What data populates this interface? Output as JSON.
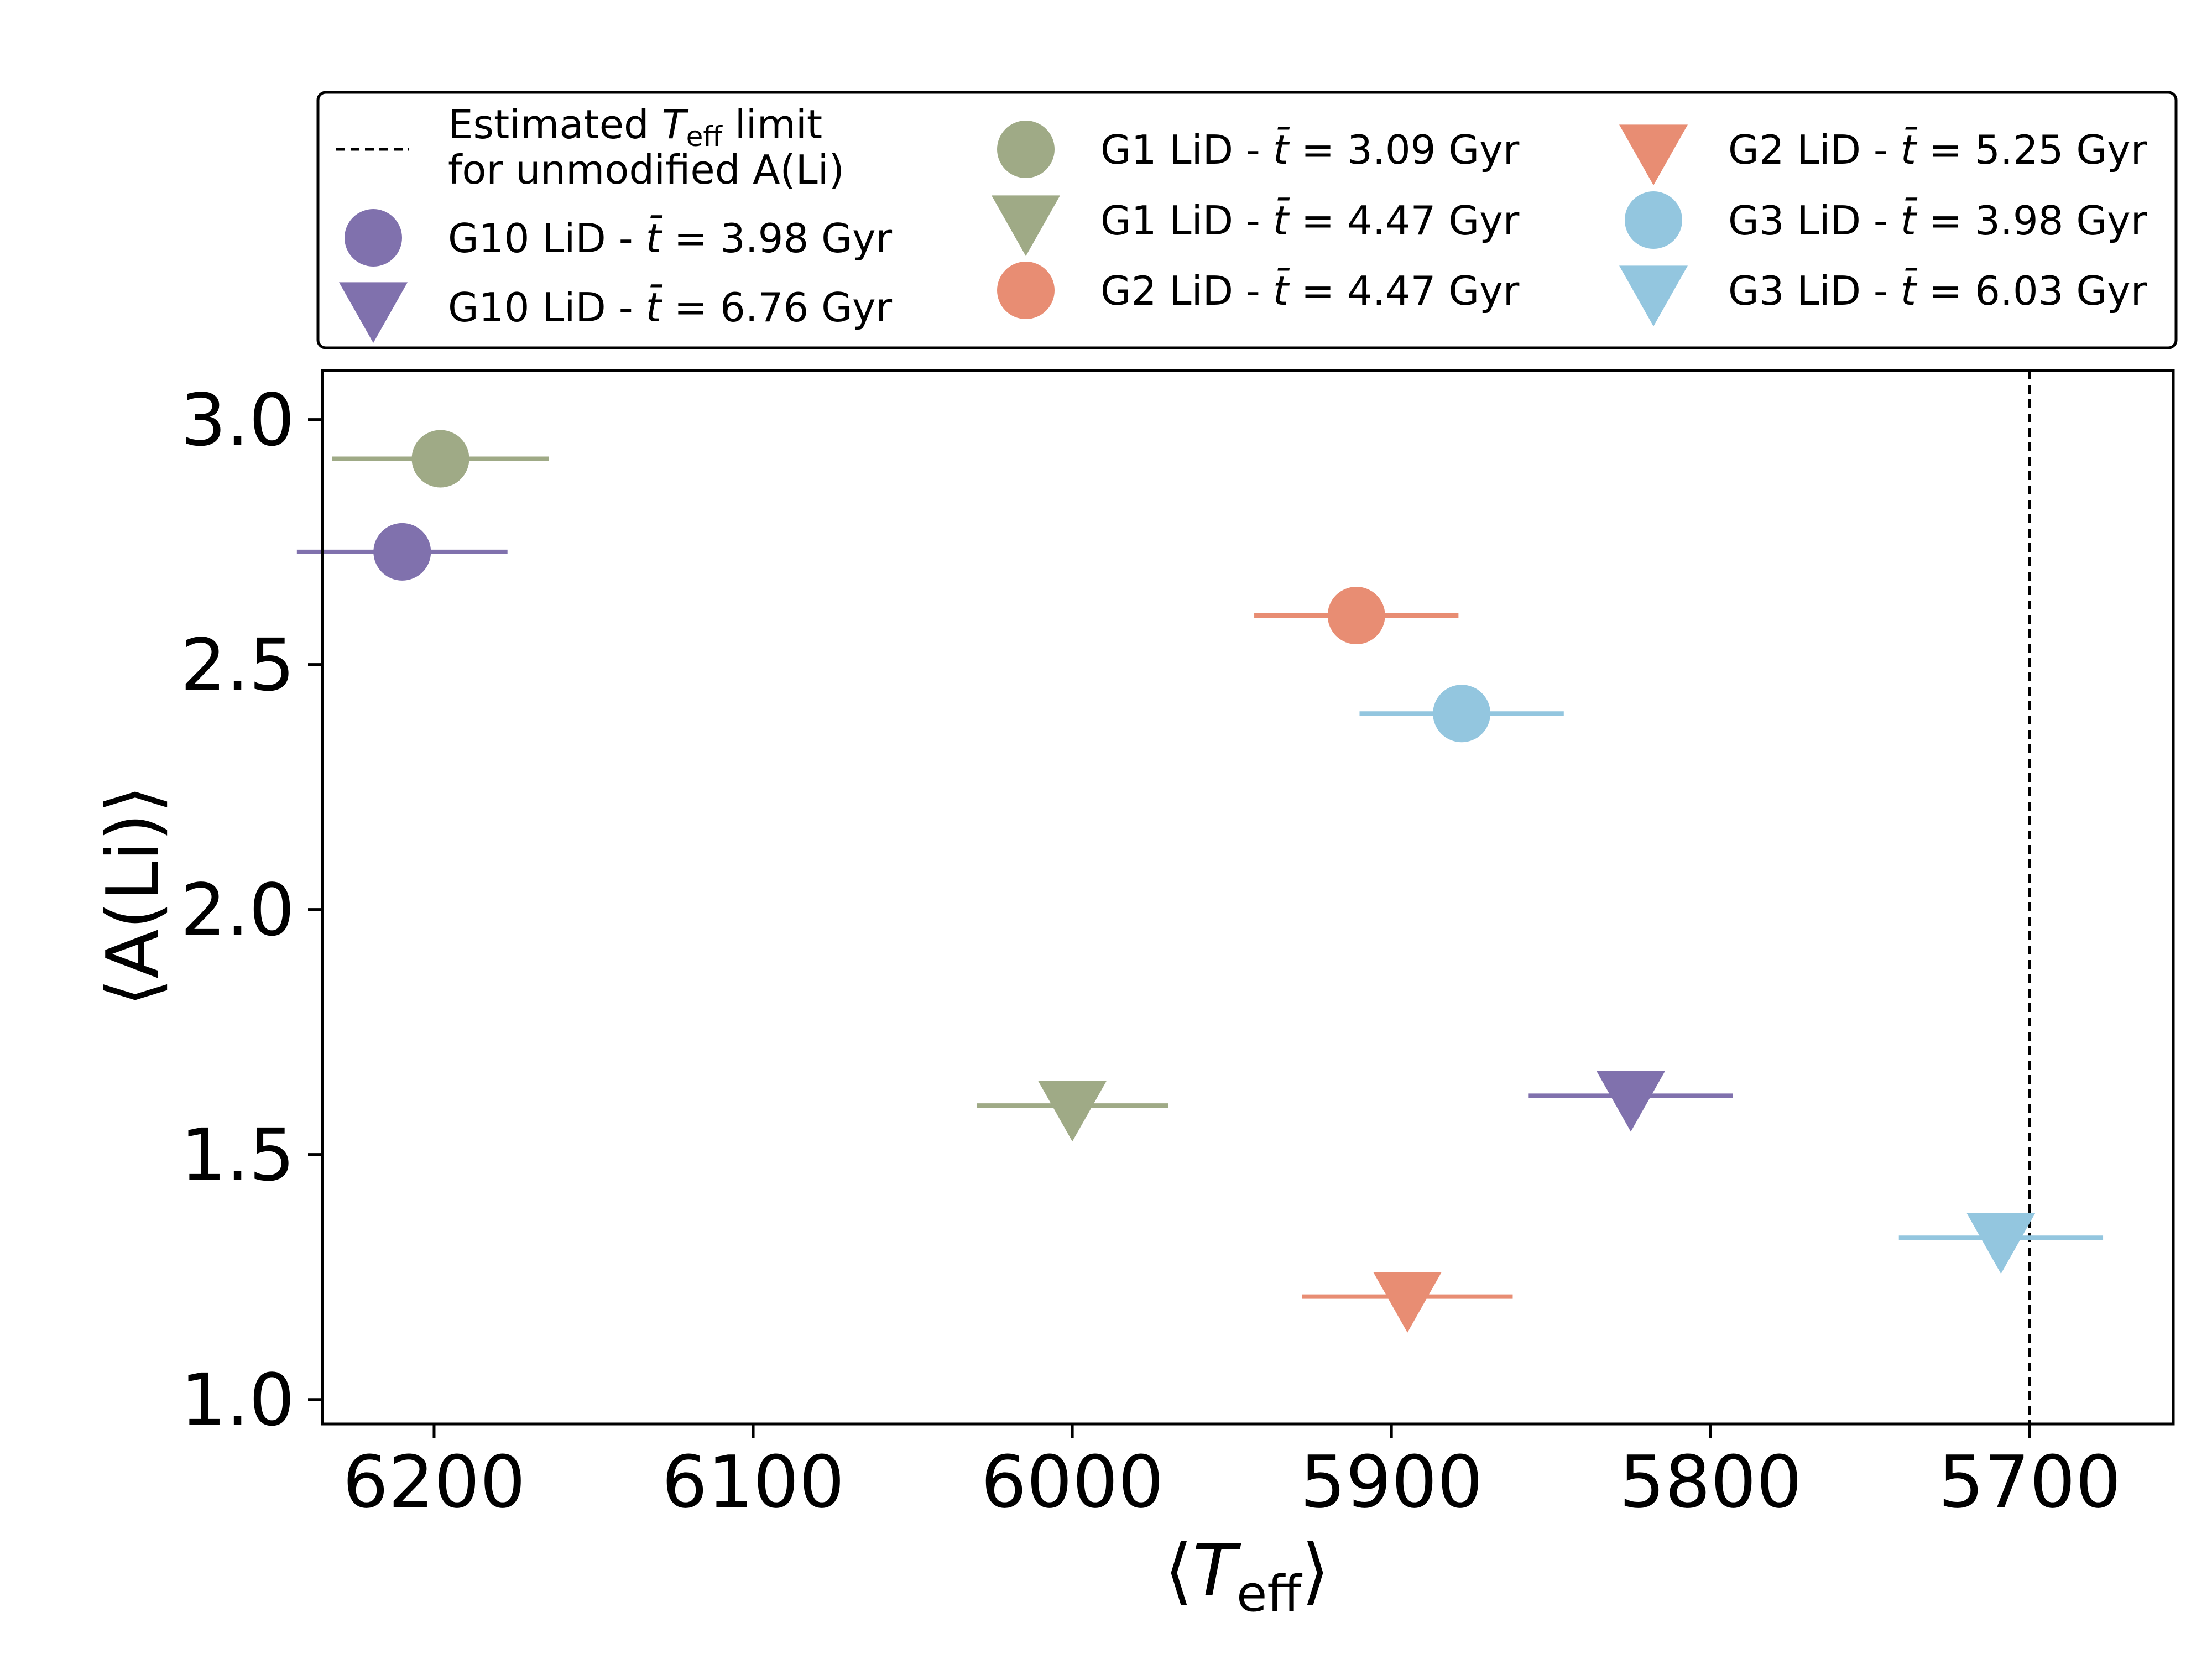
{
  "chart_data": {
    "type": "scatter",
    "title": "",
    "xlabel": {
      "open": "⟨",
      "main": "T",
      "sub": "eff",
      "close": "⟩"
    },
    "ylabel": "⟨A(Li)⟩",
    "xlim": [
      6235,
      5655
    ],
    "ylim": [
      0.95,
      3.1
    ],
    "x_inverted": true,
    "xticks": [
      6200,
      6100,
      6000,
      5900,
      5800,
      5700
    ],
    "xtick_labels": [
      "6200",
      "6100",
      "6000",
      "5900",
      "5800",
      "5700"
    ],
    "yticks": [
      1.0,
      1.5,
      2.0,
      2.5,
      3.0
    ],
    "ytick_labels": [
      "1.0",
      "1.5",
      "2.0",
      "2.5",
      "3.0"
    ],
    "grid": false,
    "legend_position": "above plot",
    "reference_line": {
      "orientation": "vertical",
      "x": 5700,
      "style": "dashed",
      "label_line1": {
        "pre": "Estimated ",
        "main": "T",
        "sub": "eff",
        "post": " limit"
      },
      "label_line2": "for unmodified A(Li)"
    },
    "series": [
      {
        "name": "G10 LiD - t̄ =  3.98 Gyr",
        "group": "G10",
        "age": "3.98",
        "marker": "circle",
        "color": "#8071ad",
        "x": 6210,
        "xerr": 33,
        "y": 2.73
      },
      {
        "name": "G10 LiD - t̄ =  6.76 Gyr",
        "group": "G10",
        "age": "6.76",
        "marker": "triangle",
        "color": "#8071ad",
        "x": 5825,
        "xerr": 32,
        "y": 1.62
      },
      {
        "name": "G1 LiD - t̄ =  3.09 Gyr",
        "group": "G1",
        "age": "3.09",
        "marker": "circle",
        "color": "#9faa86",
        "x": 6198,
        "xerr": 34,
        "y": 2.92
      },
      {
        "name": "G1 LiD - t̄ =  4.47 Gyr",
        "group": "G1",
        "age": "4.47",
        "marker": "triangle",
        "color": "#9faa86",
        "x": 6000,
        "xerr": 30,
        "y": 1.6
      },
      {
        "name": "G2 LiD - t̄ =  4.47 Gyr",
        "group": "G2",
        "age": "4.47",
        "marker": "circle",
        "color": "#e88d73",
        "x": 5911,
        "xerr": 32,
        "y": 2.6
      },
      {
        "name": "G2 LiD - t̄ =  5.25 Gyr",
        "group": "G2",
        "age": "5.25",
        "marker": "triangle",
        "color": "#e88d73",
        "x": 5895,
        "xerr": 33,
        "y": 1.21
      },
      {
        "name": "G3 LiD - t̄ =  3.98 Gyr",
        "group": "G3",
        "age": "3.98",
        "marker": "circle",
        "color": "#93c6df",
        "x": 5878,
        "xerr": 32,
        "y": 2.4
      },
      {
        "name": "G3 LiD - t̄ =  6.03 Gyr",
        "group": "G3",
        "age": "6.03",
        "marker": "triangle",
        "color": "#93c6df",
        "x": 5709,
        "xerr": 32,
        "y": 1.33
      }
    ],
    "legend_unit": "Gyr"
  }
}
